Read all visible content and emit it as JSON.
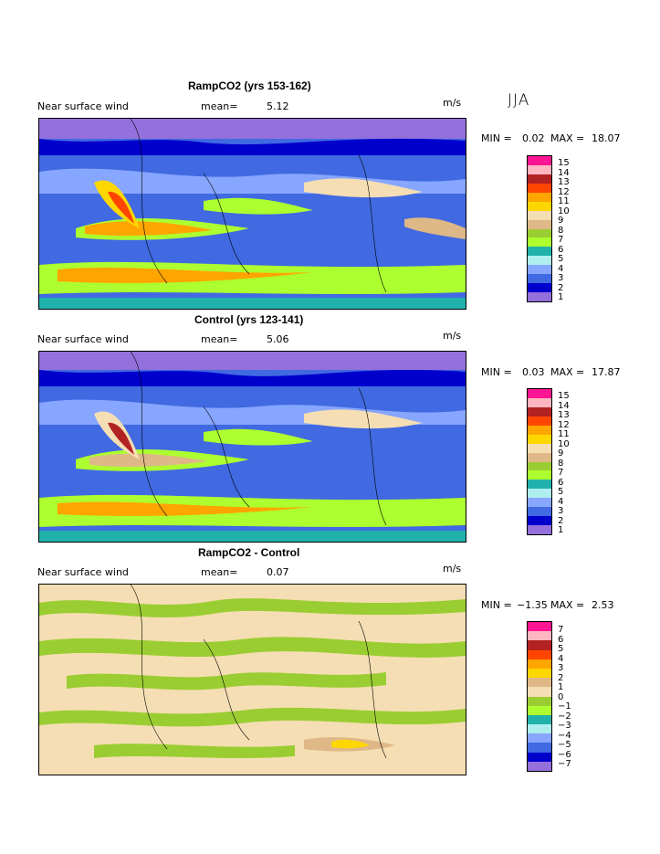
{
  "season": "JJA",
  "panels": [
    {
      "title": "RampCO2 (yrs 153-162)",
      "field_label": "Near surface wind",
      "mean_label": "mean=",
      "mean_value": "5.12",
      "units": "m/s",
      "min_label": "MIN =",
      "min_value": "0.02",
      "max_label": "MAX =",
      "max_value": "18.07",
      "legend_levels": [
        "15",
        "14",
        "13",
        "12",
        "11",
        "10",
        "9",
        "8",
        "7",
        "6",
        "5",
        "4",
        "3",
        "2",
        "1"
      ],
      "legend_colors": [
        "#ff1493",
        "#ffb6c1",
        "#b22222",
        "#ff4500",
        "#ffa500",
        "#ffd700",
        "#f5deb3",
        "#deb887",
        "#9acd32",
        "#adff2f",
        "#20b2aa",
        "#afeeee",
        "#87a6ff",
        "#4169e1",
        "#0000cd",
        "#9370db"
      ]
    },
    {
      "title": "Control (yrs 123-141)",
      "field_label": "Near surface wind",
      "mean_label": "mean=",
      "mean_value": "5.06",
      "units": "m/s",
      "min_label": "MIN =",
      "min_value": "0.03",
      "max_label": "MAX =",
      "max_value": "17.87",
      "legend_levels": [
        "15",
        "14",
        "13",
        "12",
        "11",
        "10",
        "9",
        "8",
        "7",
        "6",
        "5",
        "4",
        "3",
        "2",
        "1"
      ],
      "legend_colors": [
        "#ff1493",
        "#ffb6c1",
        "#b22222",
        "#ff4500",
        "#ffa500",
        "#ffd700",
        "#f5deb3",
        "#deb887",
        "#9acd32",
        "#adff2f",
        "#20b2aa",
        "#afeeee",
        "#87a6ff",
        "#4169e1",
        "#0000cd",
        "#9370db"
      ]
    },
    {
      "title": "RampCO2 - Control",
      "field_label": "Near surface wind",
      "mean_label": "mean=",
      "mean_value": "0.07",
      "units": "m/s",
      "min_label": "MIN =",
      "min_value": "−1.35",
      "max_label": "MAX =",
      "max_value": "2.53",
      "legend_levels": [
        "7",
        "6",
        "5",
        "4",
        "3",
        "2",
        "1",
        "0",
        "−1",
        "−2",
        "−3",
        "−4",
        "−5",
        "−6",
        "−7"
      ],
      "legend_colors": [
        "#ff1493",
        "#ffb6c1",
        "#b22222",
        "#ff4500",
        "#ffa500",
        "#ffd700",
        "#deb887",
        "#f5deb3",
        "#9acd32",
        "#adff2f",
        "#20b2aa",
        "#afeeee",
        "#87a6ff",
        "#4169e1",
        "#0000cd",
        "#9370db"
      ]
    }
  ]
}
